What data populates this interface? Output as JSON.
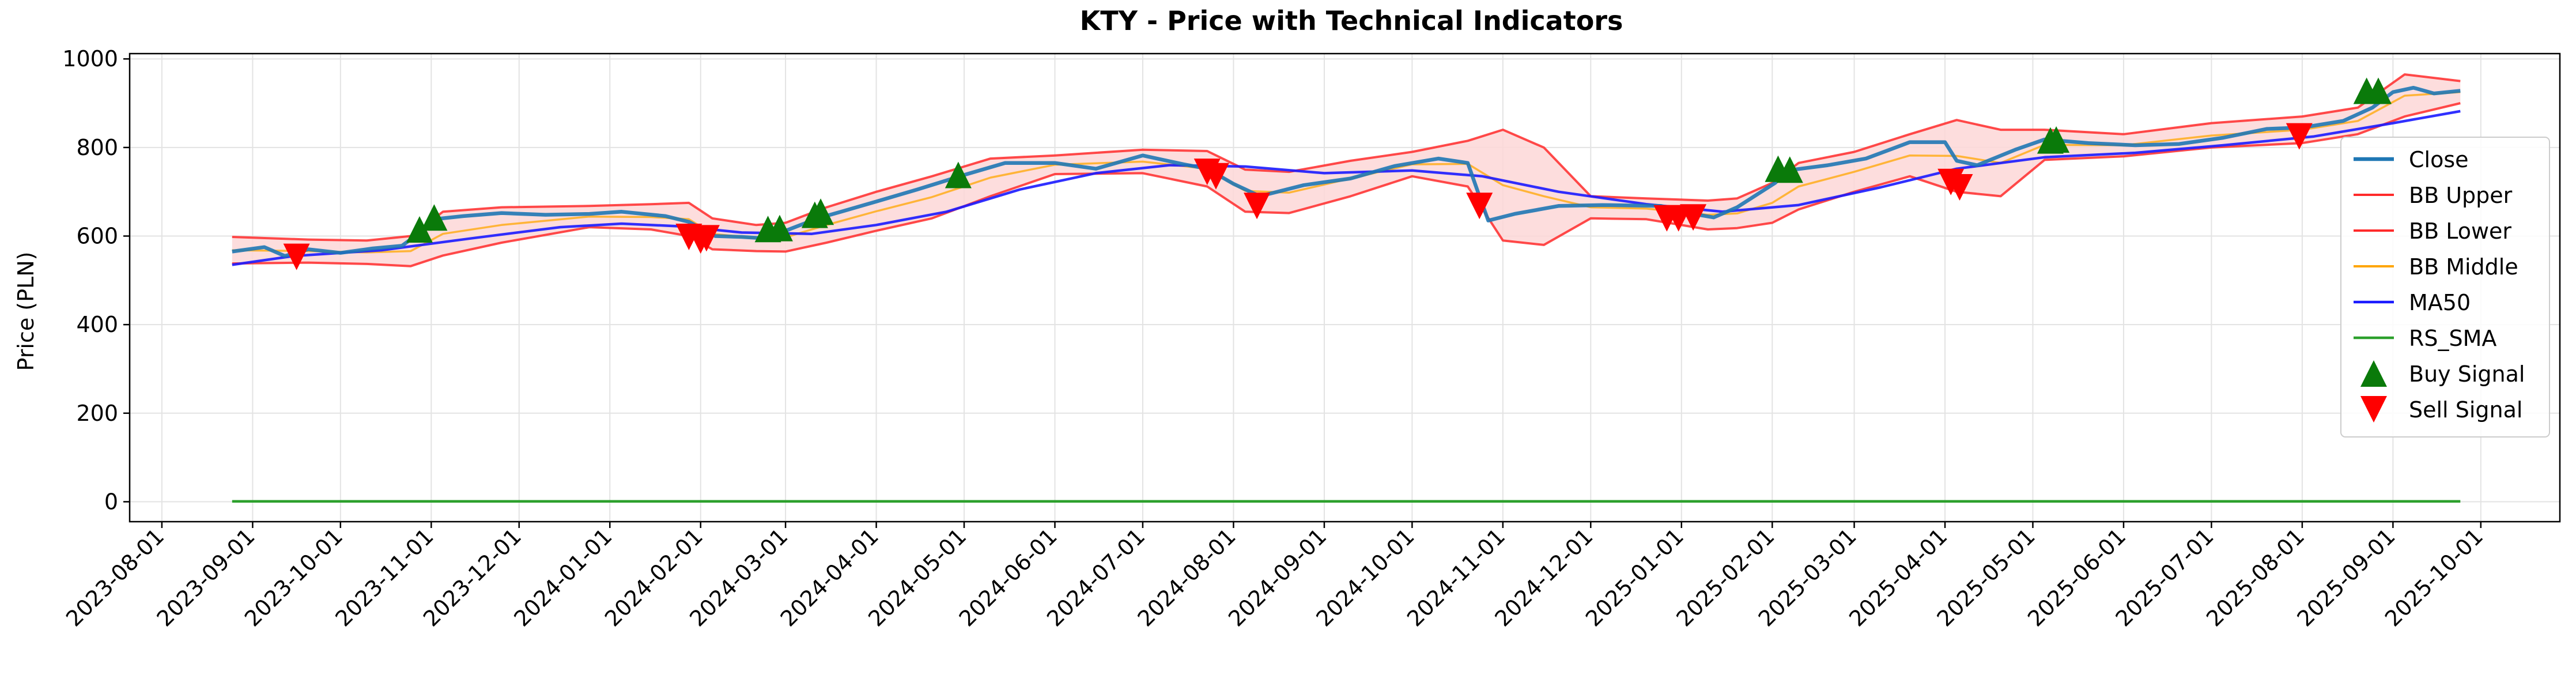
{
  "chart_data": {
    "type": "line",
    "title": "KTY - Price with Technical Indicators",
    "xlabel": "",
    "ylabel": "Price (PLN)",
    "xlim": [
      "2023-07-21",
      "2025-10-28"
    ],
    "ylim": [
      -45,
      1012
    ],
    "grid": true,
    "legend_position": "right",
    "x_ticks": [
      "2023-08-01",
      "2023-09-01",
      "2023-10-01",
      "2023-11-01",
      "2023-12-01",
      "2024-01-01",
      "2024-02-01",
      "2024-03-01",
      "2024-04-01",
      "2024-05-01",
      "2024-06-01",
      "2024-07-01",
      "2024-08-01",
      "2024-09-01",
      "2024-10-01",
      "2024-11-01",
      "2024-12-01",
      "2025-01-01",
      "2025-02-01",
      "2025-03-01",
      "2025-04-01",
      "2025-05-01",
      "2025-06-01",
      "2025-07-01",
      "2025-08-01",
      "2025-09-01",
      "2025-10-01"
    ],
    "y_ticks": [
      0,
      200,
      400,
      600,
      800,
      1000
    ],
    "legend": [
      "Close",
      "BB Upper",
      "BB Lower",
      "BB Middle",
      "MA50",
      "RS_SMA",
      "Buy Signal",
      "Sell Signal"
    ],
    "colors": {
      "close": "#1f77b4",
      "bb_upper": "#ff2a2a",
      "bb_lower": "#ff2a2a",
      "bb_middle": "#ffa500",
      "ma50": "#1a1aff",
      "rs_sma": "#2ca02c",
      "buy": "#0a7a0a",
      "sell": "#ff0000",
      "band_fill": "#fdd7d7"
    },
    "series": [
      {
        "name": "Close",
        "key": "close",
        "points": [
          [
            "2023-08-25",
            565
          ],
          [
            "2023-09-05",
            575
          ],
          [
            "2023-09-12",
            555
          ],
          [
            "2023-09-20",
            570
          ],
          [
            "2023-10-01",
            562
          ],
          [
            "2023-10-12",
            572
          ],
          [
            "2023-10-22",
            578
          ],
          [
            "2023-10-29",
            612
          ],
          [
            "2023-11-02",
            638
          ],
          [
            "2023-11-12",
            645
          ],
          [
            "2023-11-25",
            652
          ],
          [
            "2023-12-10",
            648
          ],
          [
            "2023-12-25",
            650
          ],
          [
            "2024-01-05",
            655
          ],
          [
            "2024-01-20",
            645
          ],
          [
            "2024-01-28",
            632
          ],
          [
            "2024-02-06",
            600
          ],
          [
            "2024-02-15",
            598
          ],
          [
            "2024-02-25",
            594
          ],
          [
            "2024-03-01",
            612
          ],
          [
            "2024-03-12",
            640
          ],
          [
            "2024-03-20",
            655
          ],
          [
            "2024-04-01",
            678
          ],
          [
            "2024-04-15",
            705
          ],
          [
            "2024-05-01",
            738
          ],
          [
            "2024-05-15",
            765
          ],
          [
            "2024-06-01",
            765
          ],
          [
            "2024-06-15",
            752
          ],
          [
            "2024-07-01",
            782
          ],
          [
            "2024-07-15",
            762
          ],
          [
            "2024-07-23",
            752
          ],
          [
            "2024-08-01",
            718
          ],
          [
            "2024-08-10",
            690
          ],
          [
            "2024-08-25",
            715
          ],
          [
            "2024-09-10",
            730
          ],
          [
            "2024-09-25",
            758
          ],
          [
            "2024-10-10",
            775
          ],
          [
            "2024-10-20",
            765
          ],
          [
            "2024-10-24",
            690
          ],
          [
            "2024-10-27",
            635
          ],
          [
            "2024-11-05",
            650
          ],
          [
            "2024-11-20",
            668
          ],
          [
            "2024-12-05",
            670
          ],
          [
            "2024-12-25",
            668
          ],
          [
            "2025-01-05",
            650
          ],
          [
            "2025-01-12",
            642
          ],
          [
            "2025-01-20",
            665
          ],
          [
            "2025-02-02",
            720
          ],
          [
            "2025-02-06",
            748
          ],
          [
            "2025-02-20",
            760
          ],
          [
            "2025-03-05",
            775
          ],
          [
            "2025-03-20",
            812
          ],
          [
            "2025-04-01",
            812
          ],
          [
            "2025-04-05",
            770
          ],
          [
            "2025-04-12",
            760
          ],
          [
            "2025-04-25",
            795
          ],
          [
            "2025-05-05",
            818
          ],
          [
            "2025-05-20",
            810
          ],
          [
            "2025-06-05",
            805
          ],
          [
            "2025-06-20",
            808
          ],
          [
            "2025-07-05",
            822
          ],
          [
            "2025-07-20",
            842
          ],
          [
            "2025-08-01",
            845
          ],
          [
            "2025-08-15",
            860
          ],
          [
            "2025-08-25",
            890
          ],
          [
            "2025-09-01",
            925
          ],
          [
            "2025-09-08",
            935
          ],
          [
            "2025-09-15",
            922
          ],
          [
            "2025-09-24",
            928
          ]
        ]
      },
      {
        "name": "BB Upper",
        "key": "bb_upper",
        "points": [
          [
            "2023-08-25",
            598
          ],
          [
            "2023-09-20",
            592
          ],
          [
            "2023-10-10",
            590
          ],
          [
            "2023-10-25",
            600
          ],
          [
            "2023-11-05",
            655
          ],
          [
            "2023-11-25",
            665
          ],
          [
            "2023-12-25",
            668
          ],
          [
            "2024-01-15",
            672
          ],
          [
            "2024-01-28",
            675
          ],
          [
            "2024-02-05",
            640
          ],
          [
            "2024-02-20",
            625
          ],
          [
            "2024-03-01",
            630
          ],
          [
            "2024-03-15",
            665
          ],
          [
            "2024-04-01",
            700
          ],
          [
            "2024-04-20",
            735
          ],
          [
            "2024-05-10",
            775
          ],
          [
            "2024-06-01",
            782
          ],
          [
            "2024-07-01",
            795
          ],
          [
            "2024-07-23",
            792
          ],
          [
            "2024-08-05",
            750
          ],
          [
            "2024-08-20",
            745
          ],
          [
            "2024-09-10",
            770
          ],
          [
            "2024-10-01",
            790
          ],
          [
            "2024-10-20",
            815
          ],
          [
            "2024-11-01",
            840
          ],
          [
            "2024-11-15",
            800
          ],
          [
            "2024-12-01",
            690
          ],
          [
            "2024-12-20",
            685
          ],
          [
            "2025-01-10",
            680
          ],
          [
            "2025-01-20",
            685
          ],
          [
            "2025-02-01",
            720
          ],
          [
            "2025-02-10",
            765
          ],
          [
            "2025-03-01",
            790
          ],
          [
            "2025-03-20",
            830
          ],
          [
            "2025-04-05",
            862
          ],
          [
            "2025-04-20",
            840
          ],
          [
            "2025-05-05",
            840
          ],
          [
            "2025-06-01",
            830
          ],
          [
            "2025-07-01",
            855
          ],
          [
            "2025-08-01",
            870
          ],
          [
            "2025-08-20",
            890
          ],
          [
            "2025-09-05",
            965
          ],
          [
            "2025-09-24",
            950
          ]
        ]
      },
      {
        "name": "BB Lower",
        "key": "bb_lower",
        "points": [
          [
            "2023-08-25",
            538
          ],
          [
            "2023-09-20",
            540
          ],
          [
            "2023-10-10",
            537
          ],
          [
            "2023-10-25",
            532
          ],
          [
            "2023-11-05",
            556
          ],
          [
            "2023-11-25",
            585
          ],
          [
            "2023-12-25",
            620
          ],
          [
            "2024-01-15",
            615
          ],
          [
            "2024-01-28",
            600
          ],
          [
            "2024-02-05",
            570
          ],
          [
            "2024-02-20",
            566
          ],
          [
            "2024-03-01",
            565
          ],
          [
            "2024-03-15",
            585
          ],
          [
            "2024-04-01",
            612
          ],
          [
            "2024-04-20",
            640
          ],
          [
            "2024-05-10",
            690
          ],
          [
            "2024-06-01",
            740
          ],
          [
            "2024-07-01",
            742
          ],
          [
            "2024-07-23",
            712
          ],
          [
            "2024-08-05",
            655
          ],
          [
            "2024-08-20",
            652
          ],
          [
            "2024-09-10",
            690
          ],
          [
            "2024-10-01",
            735
          ],
          [
            "2024-10-20",
            712
          ],
          [
            "2024-11-01",
            590
          ],
          [
            "2024-11-15",
            580
          ],
          [
            "2024-12-01",
            640
          ],
          [
            "2024-12-20",
            638
          ],
          [
            "2025-01-10",
            615
          ],
          [
            "2025-01-20",
            618
          ],
          [
            "2025-02-01",
            630
          ],
          [
            "2025-02-10",
            660
          ],
          [
            "2025-03-01",
            700
          ],
          [
            "2025-03-20",
            735
          ],
          [
            "2025-04-05",
            700
          ],
          [
            "2025-04-20",
            690
          ],
          [
            "2025-05-05",
            772
          ],
          [
            "2025-06-01",
            780
          ],
          [
            "2025-07-01",
            800
          ],
          [
            "2025-08-01",
            810
          ],
          [
            "2025-08-20",
            830
          ],
          [
            "2025-09-05",
            870
          ],
          [
            "2025-09-24",
            900
          ]
        ]
      },
      {
        "name": "BB Middle",
        "key": "bb_middle",
        "points": [
          [
            "2023-08-25",
            568
          ],
          [
            "2023-09-20",
            566
          ],
          [
            "2023-10-10",
            563
          ],
          [
            "2023-10-25",
            566
          ],
          [
            "2023-11-05",
            605
          ],
          [
            "2023-11-25",
            625
          ],
          [
            "2023-12-25",
            644
          ],
          [
            "2024-01-15",
            643
          ],
          [
            "2024-01-28",
            638
          ],
          [
            "2024-02-05",
            605
          ],
          [
            "2024-02-20",
            595
          ],
          [
            "2024-03-01",
            597
          ],
          [
            "2024-03-15",
            625
          ],
          [
            "2024-04-01",
            656
          ],
          [
            "2024-04-20",
            688
          ],
          [
            "2024-05-10",
            732
          ],
          [
            "2024-06-01",
            761
          ],
          [
            "2024-07-01",
            768
          ],
          [
            "2024-07-23",
            752
          ],
          [
            "2024-08-05",
            702
          ],
          [
            "2024-08-20",
            698
          ],
          [
            "2024-09-10",
            730
          ],
          [
            "2024-10-01",
            762
          ],
          [
            "2024-10-20",
            763
          ],
          [
            "2024-11-01",
            715
          ],
          [
            "2024-11-15",
            690
          ],
          [
            "2024-12-01",
            665
          ],
          [
            "2024-12-20",
            662
          ],
          [
            "2025-01-10",
            648
          ],
          [
            "2025-01-20",
            651
          ],
          [
            "2025-02-01",
            675
          ],
          [
            "2025-02-10",
            712
          ],
          [
            "2025-03-01",
            745
          ],
          [
            "2025-03-20",
            782
          ],
          [
            "2025-04-05",
            781
          ],
          [
            "2025-04-20",
            765
          ],
          [
            "2025-05-05",
            806
          ],
          [
            "2025-06-01",
            805
          ],
          [
            "2025-07-01",
            827
          ],
          [
            "2025-08-01",
            840
          ],
          [
            "2025-08-20",
            860
          ],
          [
            "2025-09-05",
            917
          ],
          [
            "2025-09-24",
            925
          ]
        ]
      },
      {
        "name": "MA50",
        "key": "ma50",
        "points": [
          [
            "2023-08-25",
            535
          ],
          [
            "2023-09-15",
            555
          ],
          [
            "2023-10-15",
            568
          ],
          [
            "2023-11-15",
            595
          ],
          [
            "2023-12-15",
            620
          ],
          [
            "2024-01-05",
            628
          ],
          [
            "2024-01-25",
            622
          ],
          [
            "2024-02-15",
            608
          ],
          [
            "2024-03-10",
            605
          ],
          [
            "2024-04-01",
            625
          ],
          [
            "2024-04-25",
            655
          ],
          [
            "2024-05-20",
            705
          ],
          [
            "2024-06-15",
            742
          ],
          [
            "2024-07-10",
            760
          ],
          [
            "2024-08-05",
            757
          ],
          [
            "2024-09-01",
            742
          ],
          [
            "2024-10-01",
            748
          ],
          [
            "2024-10-25",
            735
          ],
          [
            "2024-11-20",
            700
          ],
          [
            "2024-12-20",
            672
          ],
          [
            "2025-01-15",
            655
          ],
          [
            "2025-02-10",
            670
          ],
          [
            "2025-03-10",
            710
          ],
          [
            "2025-04-05",
            752
          ],
          [
            "2025-05-05",
            778
          ],
          [
            "2025-06-05",
            788
          ],
          [
            "2025-07-05",
            805
          ],
          [
            "2025-08-05",
            825
          ],
          [
            "2025-09-01",
            855
          ],
          [
            "2025-09-24",
            882
          ]
        ]
      },
      {
        "name": "RS_SMA",
        "key": "rs_sma",
        "points": [
          [
            "2023-08-25",
            1
          ],
          [
            "2025-09-24",
            1
          ]
        ]
      }
    ],
    "buy_signals": [
      {
        "date": "2023-10-28",
        "price": 615
      },
      {
        "date": "2023-11-02",
        "price": 642
      },
      {
        "date": "2024-02-24",
        "price": 616
      },
      {
        "date": "2024-02-28",
        "price": 618
      },
      {
        "date": "2024-03-11",
        "price": 648
      },
      {
        "date": "2024-03-13",
        "price": 655
      },
      {
        "date": "2024-04-29",
        "price": 738
      },
      {
        "date": "2025-02-03",
        "price": 752
      },
      {
        "date": "2025-02-07",
        "price": 750
      },
      {
        "date": "2025-05-07",
        "price": 816
      },
      {
        "date": "2025-05-09",
        "price": 818
      },
      {
        "date": "2025-08-23",
        "price": 928
      },
      {
        "date": "2025-08-27",
        "price": 928
      }
    ],
    "sell_signals": [
      {
        "date": "2023-09-16",
        "price": 553
      },
      {
        "date": "2024-01-28",
        "price": 598
      },
      {
        "date": "2024-02-01",
        "price": 590
      },
      {
        "date": "2024-02-03",
        "price": 595
      },
      {
        "date": "2024-07-23",
        "price": 745
      },
      {
        "date": "2024-07-26",
        "price": 735
      },
      {
        "date": "2024-08-09",
        "price": 668
      },
      {
        "date": "2024-10-24",
        "price": 668
      },
      {
        "date": "2024-12-27",
        "price": 640
      },
      {
        "date": "2024-12-31",
        "price": 640
      },
      {
        "date": "2025-01-05",
        "price": 642
      },
      {
        "date": "2025-04-03",
        "price": 722
      },
      {
        "date": "2025-04-06",
        "price": 710
      },
      {
        "date": "2025-07-31",
        "price": 825
      }
    ]
  }
}
